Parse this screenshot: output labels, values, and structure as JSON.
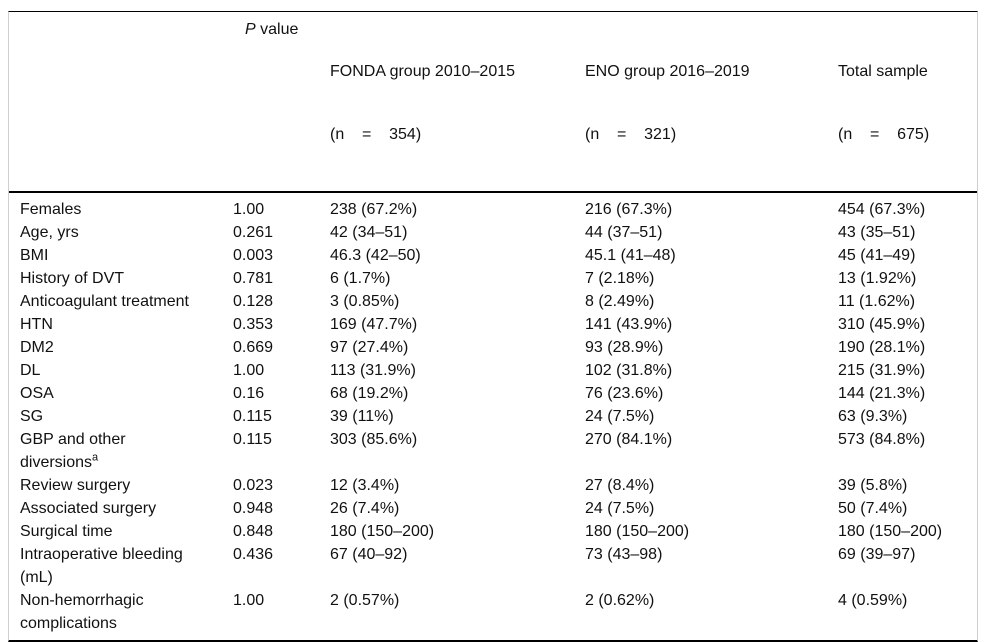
{
  "table": {
    "header": {
      "label_col": "",
      "p_italic": "P",
      "p_rest": " value",
      "groups": [
        {
          "line1": "FONDA group 2010–2015",
          "line2": "(n    =    354)"
        },
        {
          "line1": "ENO group 2016–2019",
          "line2": "(n    =    321)"
        },
        {
          "line1": "Total sample",
          "line2": "(n    =    675)"
        }
      ]
    },
    "rows": [
      {
        "label": "Females",
        "p": "1.00",
        "fonda": "238 (67.2%)",
        "eno": "216 (67.3%)",
        "total": "454 (67.3%)"
      },
      {
        "label": "Age, yrs",
        "p": "0.261",
        "fonda": "42 (34–51)",
        "eno": "44 (37–51)",
        "total": "43 (35–51)"
      },
      {
        "label": "BMI",
        "p": "0.003",
        "fonda": "46.3 (42–50)",
        "eno": "45.1 (41–48)",
        "total": "45 (41–49)"
      },
      {
        "label": "History of DVT",
        "p": "0.781",
        "fonda": "6 (1.7%)",
        "eno": "7 (2.18%)",
        "total": "13 (1.92%)"
      },
      {
        "label": "Anticoagulant treatment",
        "p": "0.128",
        "fonda": "3 (0.85%)",
        "eno": "8 (2.49%)",
        "total": "11 (1.62%)"
      },
      {
        "label": "HTN",
        "p": "0.353",
        "fonda": "169 (47.7%)",
        "eno": "141 (43.9%)",
        "total": "310 (45.9%)"
      },
      {
        "label": "DM2",
        "p": "0.669",
        "fonda": "97 (27.4%)",
        "eno": "93 (28.9%)",
        "total": "190 (28.1%)"
      },
      {
        "label": "DL",
        "p": "1.00",
        "fonda": "113 (31.9%)",
        "eno": "102 (31.8%)",
        "total": "215 (31.9%)"
      },
      {
        "label": "OSA",
        "p": "0.16",
        "fonda": "68 (19.2%)",
        "eno": "76 (23.6%)",
        "total": "144 (21.3%)"
      },
      {
        "label": "SG",
        "p": "0.115",
        "fonda": "39 (11%)",
        "eno": "24 (7.5%)",
        "total": "63 (9.3%)"
      },
      {
        "label": "GBP and other\ndiversions",
        "sup": "a",
        "p": "0.115",
        "fonda": "303 (85.6%)",
        "eno": "270 (84.1%)",
        "total": "573 (84.8%)"
      },
      {
        "label": "Review surgery",
        "p": "0.023",
        "fonda": "12 (3.4%)",
        "eno": "27 (8.4%)",
        "total": "39 (5.8%)"
      },
      {
        "label": "Associated surgery",
        "p": "0.948",
        "fonda": "26 (7.4%)",
        "eno": "24 (7.5%)",
        "total": "50 (7.4%)"
      },
      {
        "label": "Surgical time",
        "p": "0.848",
        "fonda": "180 (150–200)",
        "eno": "180 (150–200)",
        "total": "180 (150–200)"
      },
      {
        "label": "Intraoperative bleeding\n(mL)",
        "p": "0.436",
        "fonda": "67 (40–92)",
        "eno": "73 (43–98)",
        "total": "69 (39–97)"
      },
      {
        "label": "Non-hemorrhagic\ncomplications",
        "p": "1.00",
        "fonda": "2 (0.57%)",
        "eno": "2 (0.62%)",
        "total": "4 (0.59%)"
      }
    ],
    "colors": {
      "text": "#111111",
      "border_dark": "#000000",
      "border_light": "#cfcfcf",
      "background": "#ffffff"
    }
  }
}
